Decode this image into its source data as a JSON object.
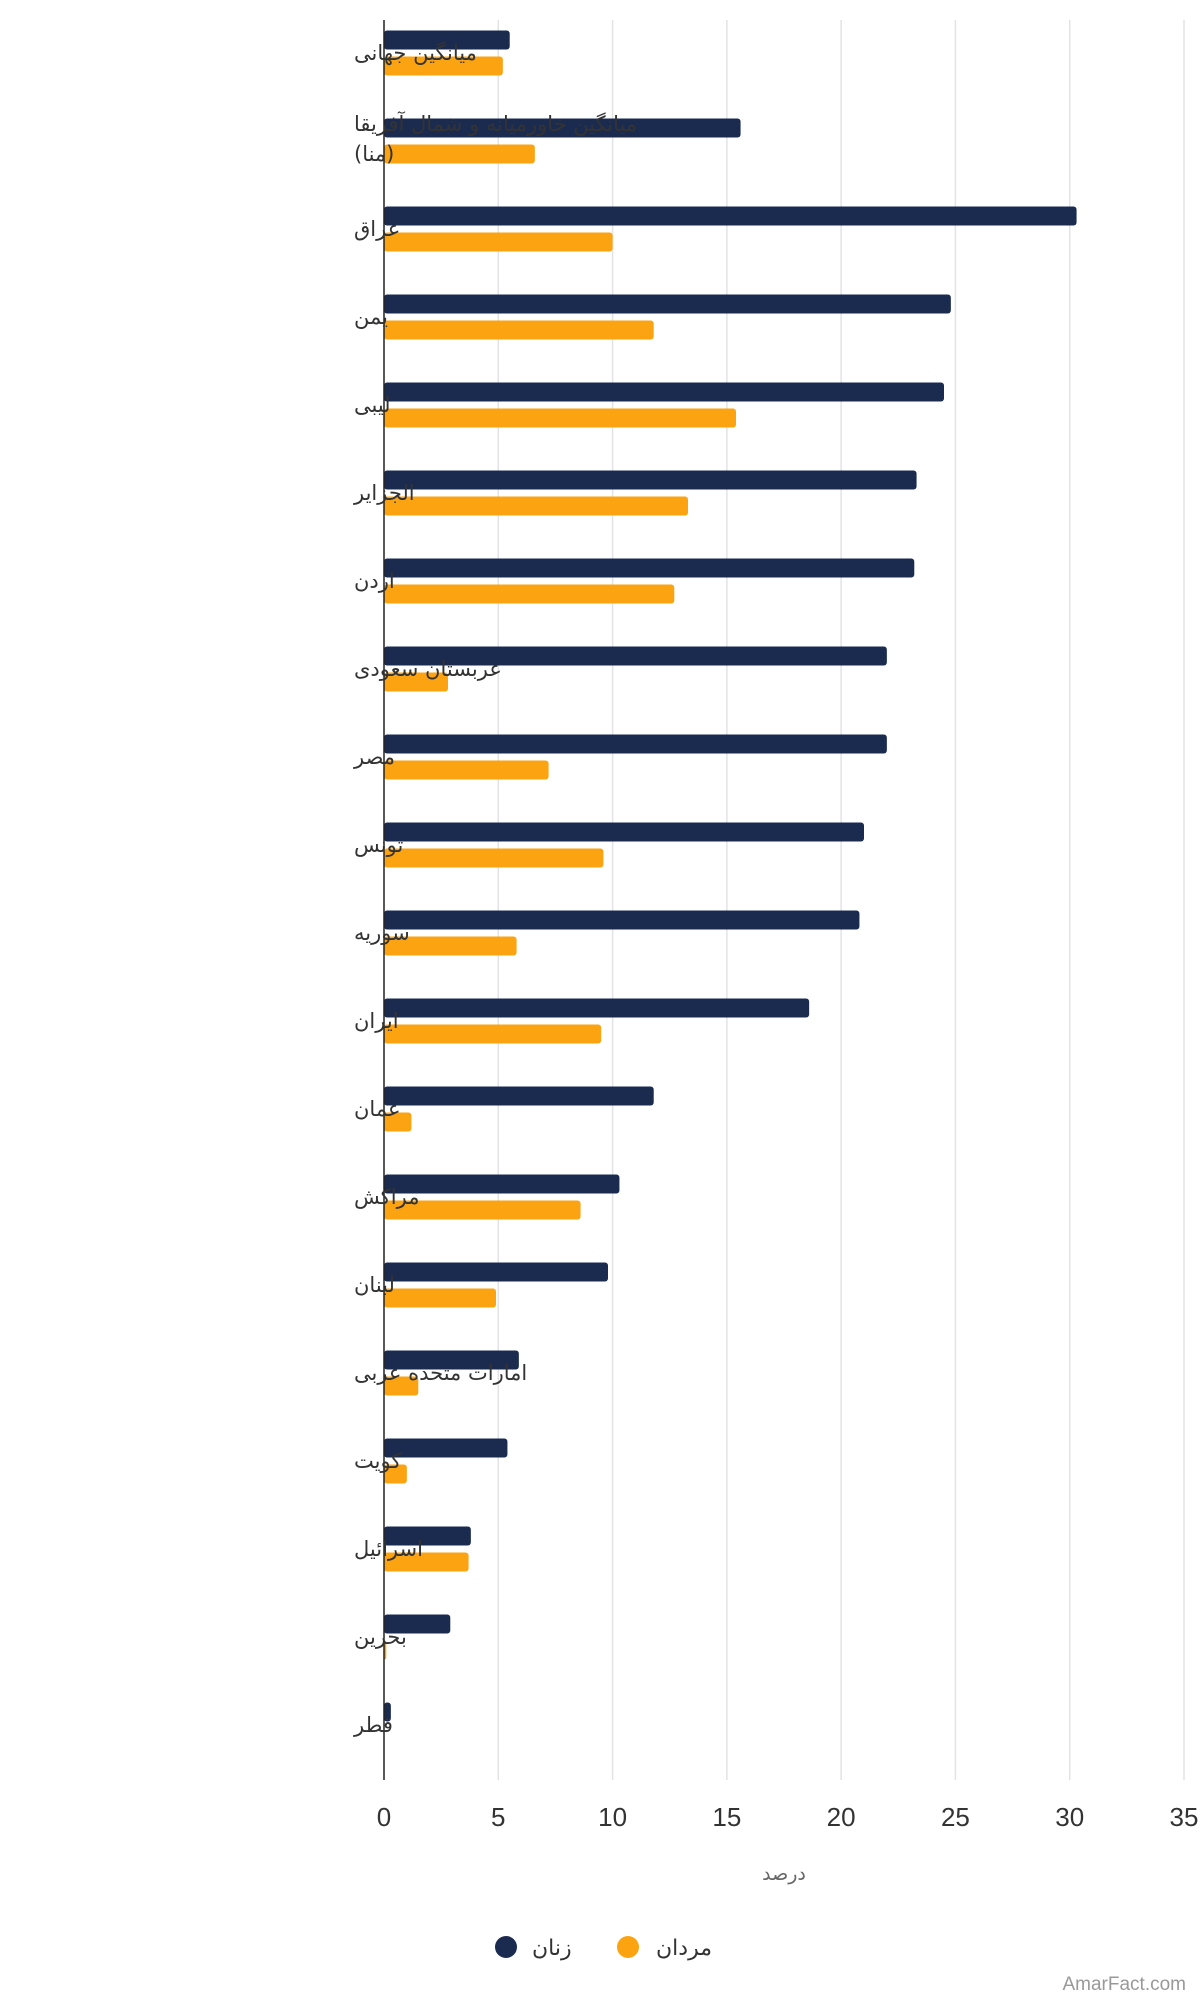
{
  "chart_data": {
    "type": "bar",
    "orientation": "horizontal",
    "categories": [
      "میانگین جهانی",
      "میانگین خاورمیانه و شمال آفریقا (منا)",
      "عراق",
      "یمن",
      "لیبی",
      "الجزایر",
      "اردن",
      "عربستان سعودی",
      "مصر",
      "تونس",
      "سوریه",
      "ایران",
      "عمان",
      "مراکش",
      "لبنان",
      "امارات متحده عربی",
      "کویت",
      "اسرائیل",
      "بحرین",
      "قطر"
    ],
    "series": [
      {
        "name": "زنان",
        "color": "#1b2b50",
        "values": [
          5.5,
          15.6,
          30.3,
          24.8,
          24.5,
          23.3,
          23.2,
          22.0,
          22.0,
          21.0,
          20.8,
          18.6,
          11.8,
          10.3,
          9.8,
          5.9,
          5.4,
          3.8,
          2.9,
          0.3
        ]
      },
      {
        "name": "مردان",
        "color": "#fca311",
        "values": [
          5.2,
          6.6,
          10.0,
          11.8,
          15.4,
          13.3,
          12.7,
          2.8,
          7.2,
          9.6,
          5.8,
          9.5,
          1.2,
          8.6,
          4.9,
          1.5,
          1.0,
          3.7,
          0.1,
          null
        ]
      }
    ],
    "xlim": [
      0,
      35
    ],
    "xticks": [
      0,
      5,
      10,
      15,
      20,
      25,
      30,
      35
    ],
    "xlabel": "درصد",
    "grid": true,
    "legend_position": "bottom"
  },
  "source": "AmarFact.com"
}
